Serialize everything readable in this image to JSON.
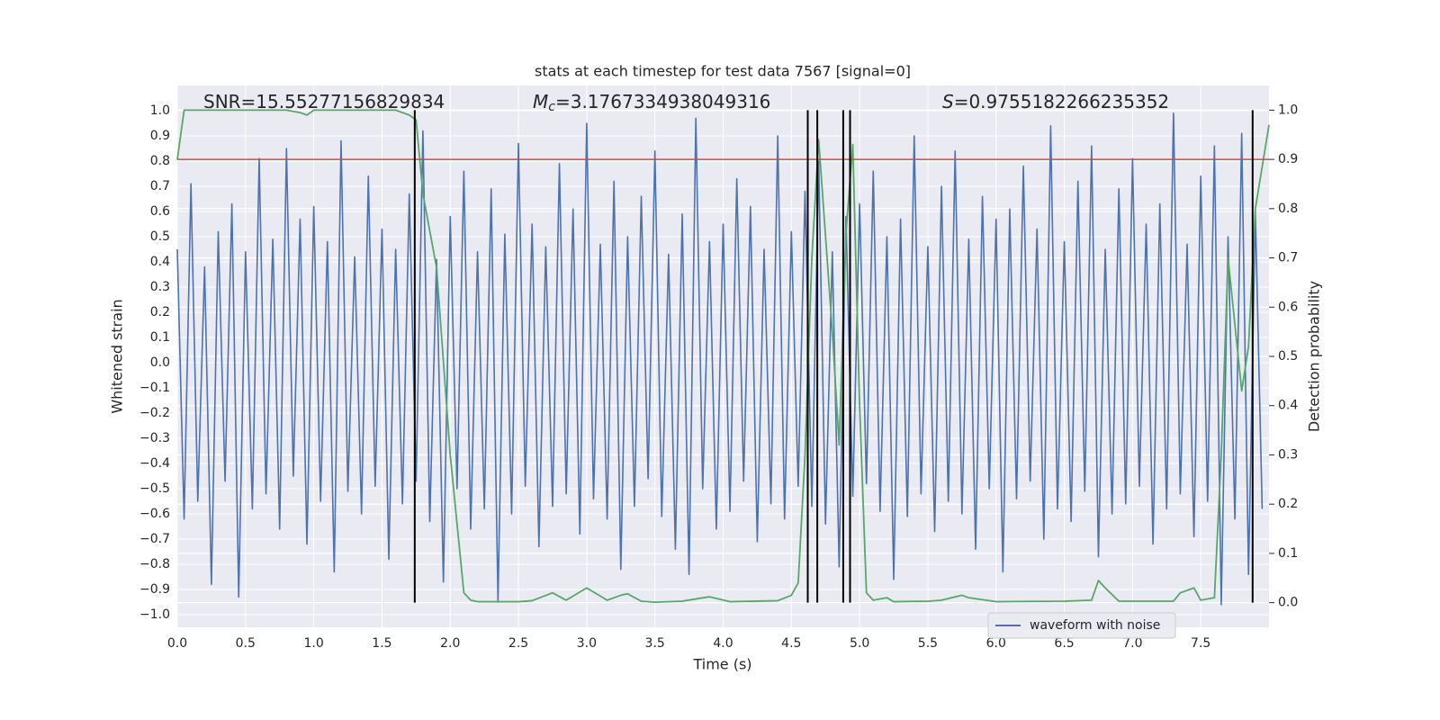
{
  "chart_data": {
    "type": "line",
    "title": "stats at each timestep for test data 7567 [signal=0]",
    "xlabel": "Time (s)",
    "ylabel": "Whitened strain",
    "y2label": "Detection probability",
    "xlim": [
      0,
      8
    ],
    "ylim": [
      -1.05,
      1.1
    ],
    "y2lim": [
      -0.05,
      1.05
    ],
    "xticks": [
      {
        "value": 0,
        "label": "0.0"
      },
      0.5,
      {
        "value": 1,
        "label": "1.0"
      },
      1.5,
      {
        "value": 2,
        "label": "2.0"
      },
      2.5,
      {
        "value": 3,
        "label": "3.0"
      },
      3.5,
      {
        "value": 4,
        "label": "4.0"
      },
      4.5,
      {
        "value": 5,
        "label": "5.0"
      },
      5.5,
      {
        "value": 6,
        "label": "6.0"
      },
      6.5,
      {
        "value": 7,
        "label": "7.0"
      },
      7.5
    ],
    "yticks": [
      {
        "value": -1,
        "label": "−1.0"
      },
      {
        "value": -0.9,
        "label": "−0.9"
      },
      {
        "value": -0.8,
        "label": "−0.8"
      },
      {
        "value": -0.7,
        "label": "−0.7"
      },
      {
        "value": -0.6,
        "label": "−0.6"
      },
      {
        "value": -0.5,
        "label": "−0.5"
      },
      {
        "value": -0.4,
        "label": "−0.4"
      },
      {
        "value": -0.3,
        "label": "−0.3"
      },
      {
        "value": -0.2,
        "label": "−0.2"
      },
      {
        "value": -0.1,
        "label": "−0.1"
      },
      {
        "value": 0,
        "label": "0.0"
      },
      0.1,
      0.2,
      0.3,
      0.4,
      0.5,
      0.6,
      0.7,
      0.8,
      0.9,
      {
        "value": 1,
        "label": "1.0"
      }
    ],
    "y2ticks": [
      {
        "value": 0,
        "label": "0.0"
      },
      0.1,
      0.2,
      0.3,
      0.4,
      0.5,
      0.6,
      0.7,
      0.8,
      0.9,
      {
        "value": 1,
        "label": "1.0"
      }
    ],
    "grid": true,
    "legend": "lower right",
    "annotations": [
      [
        "SNR=15.55277156829834"
      ],
      [
        "M",
        "c",
        "=3.1767334938049316"
      ],
      [
        "S",
        "=0.9755182266235352"
      ]
    ],
    "threshold": {
      "value": 0.9,
      "axis": "y2",
      "color": "#c44e52"
    },
    "vlines": {
      "x": [
        1.74,
        4.62,
        4.69,
        4.88,
        4.93,
        7.88
      ],
      "range": [
        0,
        1
      ],
      "axis": "y2",
      "color": "#000000"
    },
    "series": [
      {
        "name": "waveform with noise",
        "color": "#4c72b0",
        "x": [
          0,
          0.05,
          0.1,
          0.15,
          0.2,
          0.25,
          0.3,
          0.35,
          0.4,
          0.45,
          0.5,
          0.55,
          0.6,
          0.65,
          0.7,
          0.75,
          0.8,
          0.85,
          0.9,
          0.95,
          1,
          1.05,
          1.1,
          1.15,
          1.2,
          1.25,
          1.3,
          1.35,
          1.4,
          1.45,
          1.5,
          1.55,
          1.6,
          1.65,
          1.7,
          1.75,
          1.8,
          1.85,
          1.9,
          1.95,
          2,
          2.05,
          2.1,
          2.15,
          2.2,
          2.25,
          2.3,
          2.35,
          2.4,
          2.45,
          2.5,
          2.55,
          2.6,
          2.65,
          2.7,
          2.75,
          2.8,
          2.85,
          2.9,
          2.95,
          3,
          3.05,
          3.1,
          3.15,
          3.2,
          3.25,
          3.3,
          3.35,
          3.4,
          3.45,
          3.5,
          3.55,
          3.6,
          3.65,
          3.7,
          3.75,
          3.8,
          3.85,
          3.9,
          3.95,
          4,
          4.05,
          4.1,
          4.15,
          4.2,
          4.25,
          4.3,
          4.35,
          4.4,
          4.45,
          4.5,
          4.55,
          4.6,
          4.65,
          4.7,
          4.75,
          4.8,
          4.85,
          4.9,
          4.95,
          5,
          5.05,
          5.1,
          5.15,
          5.2,
          5.25,
          5.3,
          5.35,
          5.4,
          5.45,
          5.5,
          5.55,
          5.6,
          5.65,
          5.7,
          5.75,
          5.8,
          5.85,
          5.9,
          5.95,
          6,
          6.05,
          6.1,
          6.15,
          6.2,
          6.25,
          6.3,
          6.35,
          6.4,
          6.45,
          6.5,
          6.55,
          6.6,
          6.65,
          6.7,
          6.75,
          6.8,
          6.85,
          6.9,
          6.95,
          7,
          7.05,
          7.1,
          7.15,
          7.2,
          7.25,
          7.3,
          7.35,
          7.4,
          7.45,
          7.5,
          7.55,
          7.6,
          7.65,
          7.7,
          7.75,
          7.8,
          7.85,
          7.9,
          7.95
        ],
        "values": [
          0.45,
          -0.62,
          0.71,
          -0.55,
          0.38,
          -0.88,
          0.52,
          -0.47,
          0.63,
          -0.93,
          0.44,
          -0.58,
          0.81,
          -0.52,
          0.49,
          -0.66,
          0.85,
          -0.45,
          0.57,
          -0.72,
          0.62,
          -0.55,
          0.48,
          -0.83,
          0.88,
          -0.51,
          0.42,
          -0.6,
          0.74,
          -0.49,
          0.53,
          -0.78,
          0.45,
          -0.56,
          0.67,
          -0.47,
          0.92,
          -0.63,
          0.41,
          -0.87,
          0.58,
          -0.5,
          0.76,
          -0.66,
          0.44,
          -0.58,
          0.69,
          -0.95,
          0.51,
          -0.6,
          0.87,
          -0.49,
          0.55,
          -0.73,
          0.46,
          -0.57,
          0.79,
          -0.52,
          0.61,
          -0.68,
          0.95,
          -0.54,
          0.47,
          -0.62,
          0.72,
          -0.82,
          0.5,
          -0.57,
          0.66,
          -0.46,
          0.84,
          -0.61,
          0.43,
          -0.74,
          0.59,
          -0.84,
          0.97,
          -0.5,
          0.48,
          -0.66,
          0.55,
          -0.59,
          0.73,
          -0.47,
          0.62,
          -0.71,
          0.45,
          -0.56,
          0.9,
          -0.62,
          0.52,
          -0.49,
          0.68,
          -0.57,
          0.8,
          -0.64,
          0.44,
          -0.81,
          0.58,
          -0.53,
          0.63,
          -0.48,
          0.76,
          -0.59,
          0.5,
          -0.86,
          0.57,
          -0.61,
          0.9,
          -0.52,
          0.46,
          -0.67,
          0.7,
          -0.55,
          0.84,
          -0.6,
          0.49,
          -0.74,
          0.66,
          -0.5,
          0.57,
          -0.83,
          0.61,
          -0.54,
          0.78,
          -0.47,
          0.53,
          -0.7,
          0.94,
          -0.58,
          0.48,
          -0.63,
          0.72,
          -0.51,
          0.86,
          -0.77,
          0.45,
          -0.6,
          0.69,
          -0.56,
          0.81,
          -0.49,
          0.55,
          -0.72,
          0.63,
          -0.58,
          0.99,
          -0.52,
          0.47,
          -0.69,
          0.74,
          -0.55,
          0.86,
          -0.96,
          0.5,
          -0.62,
          0.91,
          -0.84,
          0.6,
          -0.58
        ]
      },
      {
        "color": "#55a868",
        "axis": "y2",
        "x": [
          0,
          0.05,
          0.2,
          0.4,
          0.6,
          0.8,
          0.9,
          0.95,
          1.0,
          1.2,
          1.4,
          1.6,
          1.7,
          1.75,
          1.8,
          1.9,
          2.0,
          2.1,
          2.15,
          2.2,
          2.5,
          2.6,
          2.75,
          2.85,
          3.0,
          3.15,
          3.25,
          3.3,
          3.4,
          3.5,
          3.7,
          3.9,
          4.05,
          4.4,
          4.5,
          4.55,
          4.6,
          4.65,
          4.7,
          4.8,
          4.85,
          4.9,
          4.95,
          5.0,
          5.05,
          5.1,
          5.2,
          5.25,
          5.5,
          5.6,
          5.75,
          5.8,
          6.0,
          6.5,
          6.7,
          6.75,
          6.8,
          6.9,
          7.3,
          7.35,
          7.45,
          7.5,
          7.6,
          7.65,
          7.7,
          7.8,
          7.85,
          7.9,
          8.0
        ],
        "values": [
          0.9,
          1.0,
          1.0,
          1.0,
          1.0,
          1.0,
          0.995,
          0.99,
          1.0,
          1.0,
          1.0,
          1.0,
          0.99,
          0.98,
          0.83,
          0.68,
          0.3,
          0.02,
          0.005,
          0.002,
          0.002,
          0.004,
          0.02,
          0.005,
          0.03,
          0.005,
          0.015,
          0.018,
          0.003,
          0.001,
          0.003,
          0.012,
          0.002,
          0.004,
          0.015,
          0.04,
          0.3,
          0.7,
          0.94,
          0.55,
          0.32,
          0.75,
          0.93,
          0.4,
          0.02,
          0.005,
          0.01,
          0.002,
          0.003,
          0.005,
          0.015,
          0.01,
          0.002,
          0.003,
          0.005,
          0.045,
          0.03,
          0.003,
          0.003,
          0.02,
          0.03,
          0.005,
          0.01,
          0.3,
          0.7,
          0.43,
          0.52,
          0.8,
          0.97
        ]
      }
    ]
  }
}
